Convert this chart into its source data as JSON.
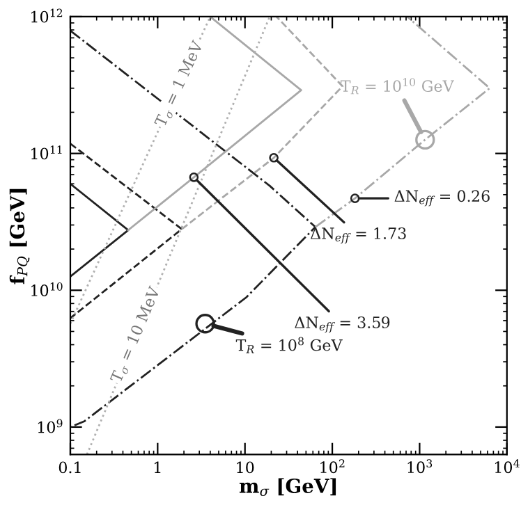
{
  "chart_data": {
    "type": "line",
    "xlabel": "m$_{σ}$ [GeV]",
    "ylabel": "f$_{PQ}$ [GeV]",
    "log": "xy",
    "grid": false,
    "legend": false,
    "xlim": [
      0.1,
      10000
    ],
    "ylim": [
      630000000.0,
      1000000000000.0
    ],
    "xticks": [
      0.1,
      1,
      10,
      {
        "value": 100,
        "label": "10$^{2}$"
      },
      {
        "value": 1000,
        "label": "10$^{3}$"
      },
      {
        "value": 10000,
        "label": "10$^{4}$"
      }
    ],
    "yticks": [
      {
        "value": 1000000000.0,
        "label": "10$^{9}$"
      },
      {
        "value": 10000000000.0,
        "label": "10$^{10}$"
      },
      {
        "value": 100000000000.0,
        "label": "10$^{11}$"
      },
      {
        "value": 1000000000000.0,
        "label": "10$^{12}$"
      }
    ],
    "series": [
      {
        "color": "#222222",
        "line_style": "solid",
        "x": [
          0.1,
          0.46,
          0.1
        ],
        "values": [
          60000000000.0,
          27500000000.0,
          12600000000.0
        ]
      },
      {
        "color": "#222222",
        "line_style": "dashed",
        "x": [
          0.1,
          1.89,
          0.1
        ],
        "values": [
          118000000000.0,
          28000000000.0,
          6250000000.0
        ]
      },
      {
        "color": "#222222",
        "line_style": "dashdot",
        "x": [
          0.1,
          19.2,
          64,
          10.4,
          0.144,
          0.1
        ],
        "values": [
          790000000000.0,
          58000000000.0,
          29000000000.0,
          8900000000.0,
          1100000000.0,
          1000000000.0
        ]
      },
      {
        "color": "#a8a8a8",
        "line_style": "solid",
        "x": [
          0.46,
          2.6,
          44,
          4.0
        ],
        "values": [
          27500000000.0,
          67000000000.0,
          290000000000.0,
          1000000000000.0
        ]
      },
      {
        "color": "#a8a8a8",
        "line_style": "dashed",
        "x": [
          1.89,
          21.4,
          131,
          23
        ],
        "values": [
          28000000000.0,
          93000000000.0,
          310000000000.0,
          1000000000000.0
        ]
      },
      {
        "color": "#a8a8a8",
        "line_style": "dashdot",
        "x": [
          64,
          182,
          1155,
          6350,
          721
        ],
        "values": [
          29000000000.0,
          47000000000.0,
          126000000000.0,
          300000000000.0,
          1000000000000.0
        ]
      },
      {
        "color": "#b0b0b0",
        "line_style": "dotted",
        "x": [
          0.1,
          4.0
        ],
        "values": [
          5700000000.0,
          1000000000000.0
        ]
      },
      {
        "color": "#b0b0b0",
        "line_style": "dotted",
        "x": [
          0.155,
          19.2
        ],
        "values": [
          630000000.0,
          1000000000000.0
        ]
      }
    ],
    "annotations": [
      {
        "text": "ΔN$_{eff}$ = 0.26",
        "x": 182,
        "y": 47000000000.0
      },
      {
        "text": "ΔN$_{eff}$ = 1.73",
        "x": 21.4,
        "y": 93000000000.0
      },
      {
        "text": "ΔN$_{eff}$ = 3.59",
        "x": 2.6,
        "y": 67000000000.0
      },
      {
        "text": "T$_{R}$ = 10$^{10}$ GeV",
        "x": 1155,
        "y": 126000000000.0
      },
      {
        "text": "T$_{R}$ = 10$^{8}$ GeV",
        "x": 3.5,
        "y": 5700000000.0
      },
      {
        "text": "T$_{σ}$ = 1 MeV",
        "x": 1.8,
        "y": 320000000000.0
      },
      {
        "text": "T$_{σ}$ = 10 MeV",
        "x": 0.57,
        "y": 4700000000.0
      }
    ]
  }
}
